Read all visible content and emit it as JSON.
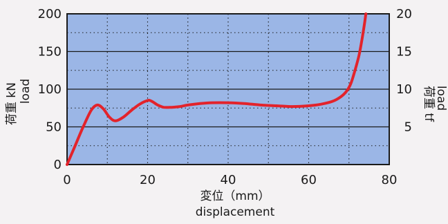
{
  "chart_data": {
    "type": "line",
    "xlabel_ja": "変位（mm）",
    "xlabel_en": "displacement",
    "ylabel_left_ja": "荷重 kN",
    "ylabel_left_en": "load",
    "ylabel_right_ja": "荷重 tf",
    "ylabel_right_en": "load",
    "xlim": [
      0,
      80
    ],
    "ylim": [
      0,
      200
    ],
    "ylim_right": [
      0,
      20
    ],
    "x_ticks": [
      0,
      20,
      40,
      60,
      80
    ],
    "y_ticks_left": [
      0,
      50,
      100,
      150,
      200
    ],
    "y_ticks_right": [
      5,
      10,
      15,
      20
    ],
    "grid": "solid major horizontal lines at 50 kN steps; dotted minor lines at 25 kN steps and every 10 mm",
    "colors": {
      "plot_background": "#9bb6e6",
      "curve": "#e3232b",
      "grid": "#1a1a1a"
    },
    "series": [
      {
        "x": [
          0,
          2,
          4,
          6,
          7.5,
          9,
          10.5,
          12,
          14,
          16,
          18,
          20,
          21,
          22.5,
          24,
          26,
          28,
          30,
          33,
          36,
          40,
          44,
          48,
          52,
          56,
          60,
          63,
          66,
          68,
          69.5,
          70.5,
          71.5,
          72.5,
          73.2,
          73.8,
          74.2
        ],
        "y": [
          0,
          25,
          50,
          72,
          79,
          74,
          63,
          58,
          63,
          72,
          80,
          85,
          84,
          79,
          76,
          76,
          77,
          79,
          81,
          82,
          82,
          81,
          79,
          78,
          77,
          78,
          80,
          84,
          90,
          98,
          108,
          125,
          145,
          165,
          185,
          200
        ]
      }
    ]
  }
}
